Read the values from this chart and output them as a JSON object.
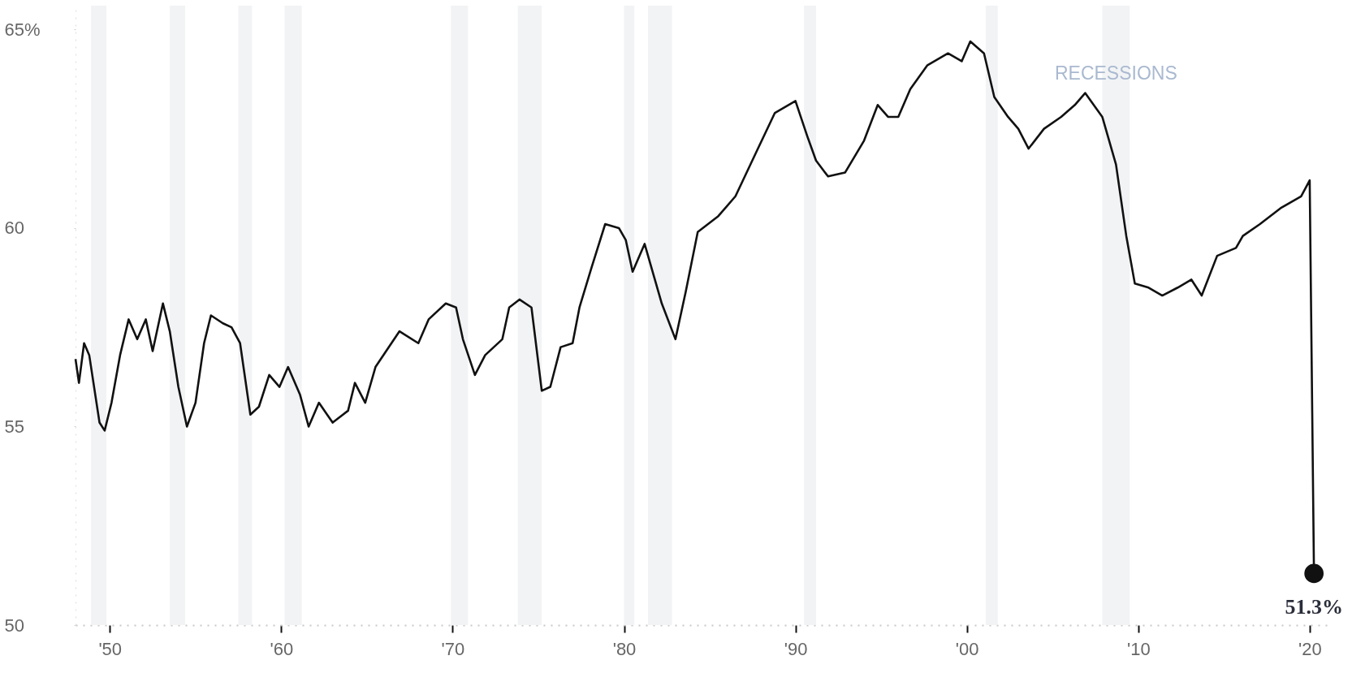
{
  "chart_data": {
    "type": "line",
    "x": [
      1948.0,
      1948.2,
      1948.5,
      1948.8,
      1949.4,
      1949.7,
      1950.1,
      1950.6,
      1951.1,
      1951.6,
      1952.1,
      1952.5,
      1953.1,
      1953.5,
      1954.0,
      1954.5,
      1955.0,
      1955.5,
      1955.9,
      1956.6,
      1957.1,
      1957.6,
      1958.2,
      1958.7,
      1959.3,
      1959.9,
      1960.4,
      1961.1,
      1961.6,
      1962.2,
      1963.0,
      1963.9,
      1964.3,
      1964.9,
      1965.5,
      1966.9,
      1968.0,
      1968.6,
      1969.6,
      1970.2,
      1970.6,
      1971.3,
      1971.9,
      1972.9,
      1973.3,
      1973.9,
      1974.6,
      1975.2,
      1975.7,
      1976.3,
      1977.0,
      1977.4,
      1978.1,
      1978.9,
      1979.7,
      1980.1,
      1980.5,
      1981.2,
      1982.2,
      1983.0,
      1983.6,
      1984.3,
      1985.5,
      1986.5,
      1987.7,
      1988.8,
      1990.0,
      1990.7,
      1991.2,
      1991.9,
      1992.9,
      1994.0,
      1994.8,
      1995.4,
      1996.0,
      1996.7,
      1997.7,
      1998.9,
      1999.7,
      2000.2,
      2001.0,
      2001.6,
      2002.4,
      2003.0,
      2003.6,
      2004.5,
      2005.5,
      2006.3,
      2006.9,
      2007.9,
      2008.7,
      2009.3,
      2009.8,
      2010.6,
      2011.4,
      2012.3,
      2013.1,
      2013.7,
      2014.6,
      2015.7,
      2016.1,
      2017.1,
      2018.3,
      2019.5,
      2020.0,
      2020.25
    ],
    "series": [
      {
        "color": "#111111",
        "values": [
          56.7,
          56.1,
          57.1,
          56.8,
          55.1,
          54.9,
          55.6,
          56.8,
          57.7,
          57.2,
          57.7,
          56.9,
          58.1,
          57.4,
          56.0,
          55.0,
          55.6,
          57.1,
          57.8,
          57.6,
          57.5,
          57.1,
          55.3,
          55.5,
          56.3,
          56.0,
          56.5,
          55.8,
          55.0,
          55.6,
          55.1,
          55.4,
          56.1,
          55.6,
          56.5,
          57.4,
          57.1,
          57.7,
          58.1,
          58.0,
          57.2,
          56.3,
          56.8,
          57.2,
          58.0,
          58.2,
          58.0,
          55.9,
          56.0,
          57.0,
          57.1,
          58.0,
          59.0,
          60.1,
          60.0,
          59.7,
          58.9,
          59.6,
          58.1,
          57.2,
          58.4,
          59.9,
          60.3,
          60.8,
          61.9,
          62.9,
          63.2,
          62.3,
          61.7,
          61.3,
          61.4,
          62.2,
          63.1,
          62.8,
          62.8,
          63.5,
          64.1,
          64.4,
          64.2,
          64.7,
          64.4,
          63.3,
          62.8,
          62.5,
          62.0,
          62.5,
          62.8,
          63.1,
          63.4,
          62.8,
          61.6,
          59.8,
          58.6,
          58.5,
          58.3,
          58.5,
          58.7,
          58.3,
          59.3,
          59.5,
          59.8,
          60.1,
          60.5,
          60.8,
          61.2,
          51.3
        ]
      }
    ],
    "xlim": [
      1948,
      2021
    ],
    "xticks": [
      {
        "value": 1950,
        "label": "'50"
      },
      {
        "value": 1960,
        "label": "'60"
      },
      {
        "value": 1970,
        "label": "'70"
      },
      {
        "value": 1980,
        "label": "'80"
      },
      {
        "value": 1990,
        "label": "'90"
      },
      {
        "value": 2000,
        "label": "'00"
      },
      {
        "value": 2010,
        "label": "'10"
      },
      {
        "value": 2020,
        "label": "'20"
      }
    ],
    "ylim": [
      50,
      65.6
    ],
    "yticks": [
      50,
      55,
      60,
      {
        "value": 65,
        "label": "65%"
      }
    ],
    "bands": [
      {
        "axis": "x",
        "from": 1948.9,
        "to": 1949.8,
        "color": "#f2f3f5"
      },
      {
        "axis": "x",
        "from": 1953.5,
        "to": 1954.4,
        "color": "#f2f3f5"
      },
      {
        "axis": "x",
        "from": 1957.5,
        "to": 1958.3,
        "color": "#f2f3f5"
      },
      {
        "axis": "x",
        "from": 1960.2,
        "to": 1961.2,
        "color": "#f2f3f5"
      },
      {
        "axis": "x",
        "from": 1969.9,
        "to": 1970.9,
        "color": "#f2f3f5"
      },
      {
        "axis": "x",
        "from": 1973.8,
        "to": 1975.2,
        "color": "#f2f3f5"
      },
      {
        "axis": "x",
        "from": 1980.0,
        "to": 1980.6,
        "color": "#f2f3f5"
      },
      {
        "axis": "x",
        "from": 1981.4,
        "to": 1982.8,
        "color": "#f2f3f5"
      },
      {
        "axis": "x",
        "from": 1990.5,
        "to": 1991.2,
        "color": "#f2f3f5"
      },
      {
        "axis": "x",
        "from": 2001.1,
        "to": 2001.8,
        "color": "#f2f3f5"
      },
      {
        "axis": "x",
        "from": 2007.9,
        "to": 2009.5,
        "color": "#f2f3f5",
        "label": "RECESSIONS"
      }
    ],
    "annotations": [
      {
        "text": "51.3%",
        "x": 2020.25,
        "y": 51.3
      }
    ]
  }
}
